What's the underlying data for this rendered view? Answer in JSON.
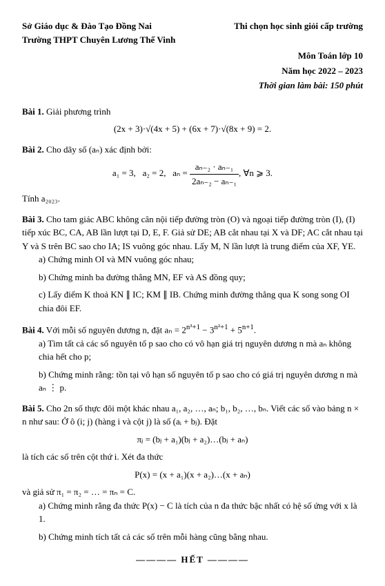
{
  "header": {
    "left1": "Sở Giáo dục & Đào Tạo Đồng Nai",
    "left2": "Trường THPT Chuyên Lương Thế Vinh",
    "right1": "Thi chọn học sinh giỏi cấp trường",
    "right2": "Môn Toán lớp 10",
    "right3": "Năm học 2022 – 2023",
    "duration": "Thời gian làm bài: 150 phút"
  },
  "p1": {
    "title": "Bài 1.",
    "text": " Giải phương trình",
    "formula": "(2x + 3)·√(4x + 5) + (6x + 7)·√(8x + 9) = 2."
  },
  "p2": {
    "title": "Bài 2.",
    "text": " Cho dãy số (aₙ) xác định bởi:",
    "f_a1": "a₁ = 3,",
    "f_a2": "a₂ = 2,",
    "f_an": "aₙ =",
    "f_num": "aₙ₋₂ · aₙ₋₁",
    "f_den": "2aₙ₋₂ − aₙ₋₁",
    "f_cond": ", ∀n ⩾ 3.",
    "compute": "Tính a₂₀₂₃."
  },
  "p3": {
    "title": "Bài 3.",
    "text": " Cho tam giác ABC không cân nội tiếp đường tròn (O) và ngoại tiếp đường tròn (I), (I) tiếp xúc BC, CA, AB lần lượt tại D, E, F. Giả sử DE; AB cắt nhau tại X và DF; AC cắt nhau tại Y và S trên BC sao cho IA; IS vuông góc nhau. Lấy M, N lần lượt là trung điểm của XF, YE.",
    "a": "a) Chứng minh OI và MN vuông góc nhau;",
    "b": "b) Chứng minh ba đường thẳng MN, EF và AS đồng quy;",
    "c": "c) Lấy điểm K thoả KN ∥ IC; KM ∥ IB. Chứng minh đường thẳng qua K song song OI chia đôi EF."
  },
  "p4": {
    "title": "Bài 4.",
    "text_pre": " Với mỗi số nguyên dương n, đặt aₙ = 2",
    "exp1": "n³+1",
    "text_mid1": " − 3",
    "exp2": "n²+1",
    "text_mid2": " + 5",
    "exp3": "n+1",
    "text_end": ".",
    "a": "a) Tìm tất cả các số nguyên tố p sao cho có vô hạn giá trị nguyên dương n mà aₙ không chia hết cho p;",
    "b": "b) Chứng minh rằng: tồn tại vô hạn số nguyên tố p sao cho có giá trị nguyên dương n mà aₙ ⋮ p."
  },
  "p5": {
    "title": "Bài 5.",
    "text": " Cho 2n số thực đôi một khác nhau a₁, a₂, …, aₙ; b₁, b₂, …, bₙ. Viết các số vào bảng n × n như sau: Ở ô (i; j) (hàng i và cột j) là số (aᵢ + bⱼ). Đặt",
    "f1": "πⱼ = (bⱼ + a₁)(bⱼ + a₂)…(bⱼ + aₙ)",
    "mid": "là tích các số trên cột thứ i. Xét đa thức",
    "f2": "P(x) = (x + a₁)(x + a₂)…(x + aₙ)",
    "cond": "và giả sử π₁ = π₂ = … = πₙ = C.",
    "a": "a) Chứng minh rằng đa thức P(x) − C là tích của n đa thức bậc nhất có hệ số ứng với x là 1.",
    "b": "b) Chứng minh tích tất cả các số trên mỗi hàng cũng bằng nhau."
  },
  "end": "———— HẾT ————"
}
